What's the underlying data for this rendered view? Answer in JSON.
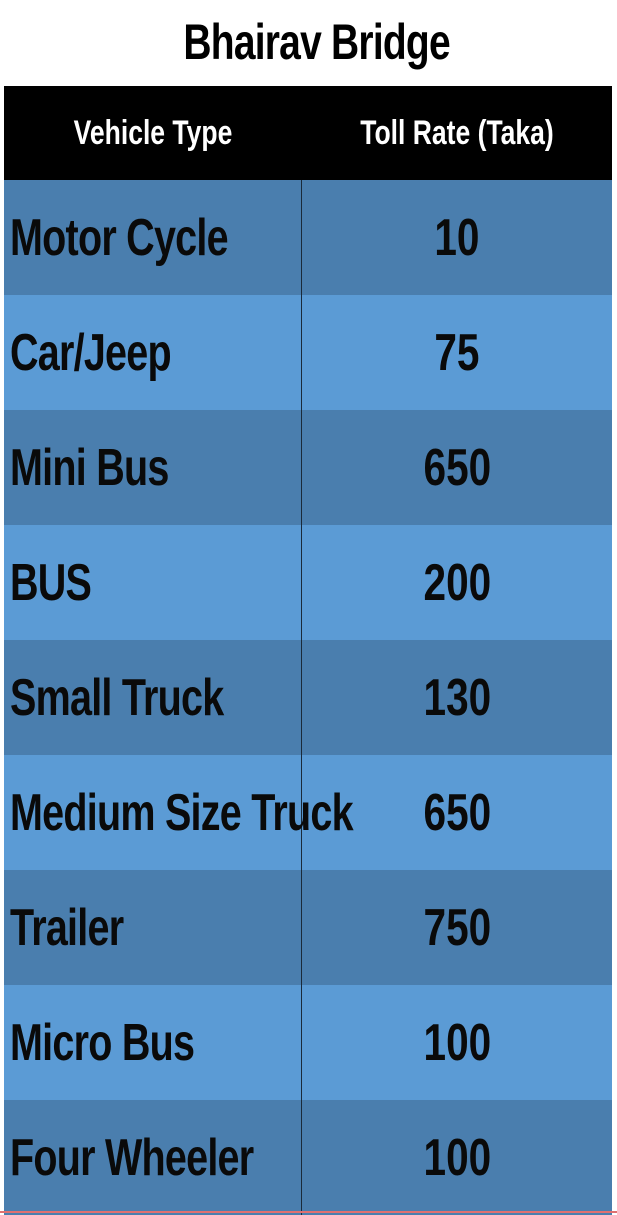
{
  "title": "Bhairav Bridge",
  "table": {
    "headers": [
      "Vehicle Type",
      "Toll Rate (Taka)"
    ],
    "rows": [
      {
        "vehicle": "Motor Cycle",
        "rate": "10"
      },
      {
        "vehicle": "Car/Jeep",
        "rate": "75"
      },
      {
        "vehicle": "Mini Bus",
        "rate": "650"
      },
      {
        "vehicle": "BUS",
        "rate": "200"
      },
      {
        "vehicle": "Small Truck",
        "rate": "130"
      },
      {
        "vehicle": "Medium Size Truck",
        "rate": "650"
      },
      {
        "vehicle": "Trailer",
        "rate": "750"
      },
      {
        "vehicle": "Micro Bus",
        "rate": "100"
      },
      {
        "vehicle": "Four Wheeler",
        "rate": "100"
      }
    ]
  },
  "colors": {
    "header_bg": "#000000",
    "row_dark": "#4a7eae",
    "row_light": "#5b9bd5"
  }
}
